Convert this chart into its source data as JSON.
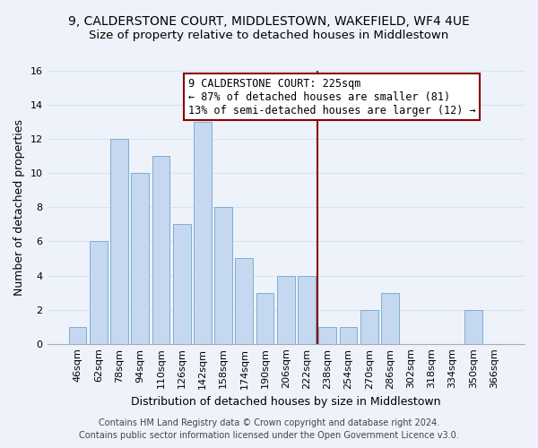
{
  "title": "9, CALDERSTONE COURT, MIDDLESTOWN, WAKEFIELD, WF4 4UE",
  "subtitle": "Size of property relative to detached houses in Middlestown",
  "xlabel": "Distribution of detached houses by size in Middlestown",
  "ylabel": "Number of detached properties",
  "bar_labels": [
    "46sqm",
    "62sqm",
    "78sqm",
    "94sqm",
    "110sqm",
    "126sqm",
    "142sqm",
    "158sqm",
    "174sqm",
    "190sqm",
    "206sqm",
    "222sqm",
    "238sqm",
    "254sqm",
    "270sqm",
    "286sqm",
    "302sqm",
    "318sqm",
    "334sqm",
    "350sqm",
    "366sqm"
  ],
  "bar_values": [
    1,
    6,
    12,
    10,
    11,
    7,
    13,
    8,
    5,
    3,
    4,
    4,
    1,
    1,
    2,
    3,
    0,
    0,
    0,
    2,
    0
  ],
  "bar_color": "#c5d8f0",
  "bar_edge_color": "#7eadd4",
  "vline_x": 11.5,
  "vline_color": "#8b0000",
  "annotation_title": "9 CALDERSTONE COURT: 225sqm",
  "annotation_line1": "← 87% of detached houses are smaller (81)",
  "annotation_line2": "13% of semi-detached houses are larger (12) →",
  "annotation_box_color": "#ffffff",
  "annotation_box_edge_color": "#8b0000",
  "ylim": [
    0,
    16
  ],
  "yticks": [
    0,
    2,
    4,
    6,
    8,
    10,
    12,
    14,
    16
  ],
  "footer_line1": "Contains HM Land Registry data © Crown copyright and database right 2024.",
  "footer_line2": "Contains public sector information licensed under the Open Government Licence v3.0.",
  "background_color": "#eef2fa",
  "grid_color": "#d8e4f0",
  "title_fontsize": 10,
  "subtitle_fontsize": 9.5,
  "axis_label_fontsize": 9,
  "tick_fontsize": 8,
  "annotation_fontsize": 8.5,
  "footer_fontsize": 7
}
